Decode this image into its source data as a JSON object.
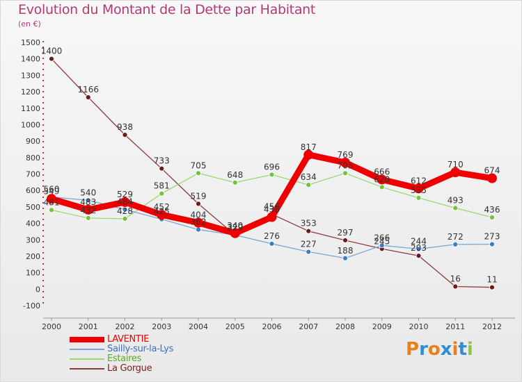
{
  "title": "Evolution du Montant de la Dette par Habitant",
  "unit_label": "(en €)",
  "logo_text": "Proxiti",
  "colors": {
    "title": "#b03a73",
    "logo_letters": [
      "#e8801f",
      "#2f8fd0",
      "#e8801f",
      "#2f8fd0",
      "#e8801f",
      "#2f8fd0",
      "#8cc63f"
    ]
  },
  "chart_data": {
    "type": "line",
    "title": "Evolution du Montant de la Dette par Habitant",
    "ylabel": "(en €)",
    "x": [
      "2000",
      "2001",
      "2002",
      "2003",
      "2004",
      "2005",
      "2006",
      "2007",
      "2008",
      "2009",
      "2010",
      "2011",
      "2012"
    ],
    "ylim": [
      -100,
      1500
    ],
    "yticks": [
      -100,
      0,
      100,
      200,
      300,
      400,
      500,
      600,
      700,
      800,
      900,
      1000,
      1100,
      1200,
      1300,
      1400,
      1500
    ],
    "grid": false,
    "legend_position": "bottom-left",
    "series": [
      {
        "name": "LAVENTIE",
        "color": "#ee0000",
        "marker": "#ee0000",
        "values": [
          549,
          483,
          529,
          452,
          404,
          340,
          438,
          817,
          769,
          666,
          612,
          710,
          674
        ]
      },
      {
        "name": "Sailly-sur-la-Lys",
        "color": "#7aa6d6",
        "marker": "#3a7fc4",
        "values": [
          560,
          540,
          484,
          425,
          362,
          329,
          276,
          227,
          188,
          266,
          244,
          272,
          273
        ]
      },
      {
        "name": "Estaires",
        "color": "#9ad873",
        "marker": "#73c23e",
        "values": [
          481,
          432,
          428,
          581,
          705,
          648,
          696,
          634,
          705,
          620,
          555,
          493,
          436
        ]
      },
      {
        "name": "La Gorgue",
        "color": "#8a3b3b",
        "marker": "#6b1b1b",
        "values": [
          1400,
          1166,
          938,
          733,
          519,
          329,
          456,
          353,
          297,
          245,
          203,
          16,
          11
        ]
      }
    ],
    "data_labels": [
      {
        "year": "2000",
        "text": "549",
        "value": 549
      },
      {
        "year": "2000",
        "text": "560",
        "value": 560
      },
      {
        "year": "2000",
        "text": "481",
        "value": 481
      },
      {
        "year": "2000",
        "text": "1400",
        "value": 1400
      },
      {
        "year": "2001",
        "text": "1166",
        "value": 1166
      },
      {
        "year": "2001",
        "text": "540",
        "value": 540
      },
      {
        "year": "2001",
        "text": "483",
        "value": 483
      },
      {
        "year": "2001",
        "text": "432",
        "value": 432
      },
      {
        "year": "2002",
        "text": "938",
        "value": 938
      },
      {
        "year": "2002",
        "text": "529",
        "value": 529
      },
      {
        "year": "2002",
        "text": "484",
        "value": 484
      },
      {
        "year": "2002",
        "text": "428",
        "value": 428
      },
      {
        "year": "2003",
        "text": "733",
        "value": 733
      },
      {
        "year": "2003",
        "text": "581",
        "value": 581
      },
      {
        "year": "2003",
        "text": "452",
        "value": 452
      },
      {
        "year": "2003",
        "text": "425",
        "value": 425
      },
      {
        "year": "2004",
        "text": "705",
        "value": 705
      },
      {
        "year": "2004",
        "text": "519",
        "value": 519
      },
      {
        "year": "2004",
        "text": "404",
        "value": 404
      },
      {
        "year": "2004",
        "text": "362",
        "value": 362
      },
      {
        "year": "2005",
        "text": "648",
        "value": 648
      },
      {
        "year": "2005",
        "text": "340",
        "value": 340
      },
      {
        "year": "2005",
        "text": "329",
        "value": 329
      },
      {
        "year": "2005",
        "text": "329",
        "value": 329
      },
      {
        "year": "2006",
        "text": "696",
        "value": 696
      },
      {
        "year": "2006",
        "text": "456",
        "value": 456
      },
      {
        "year": "2006",
        "text": "438",
        "value": 438
      },
      {
        "year": "2006",
        "text": "276",
        "value": 276
      },
      {
        "year": "2007",
        "text": "817",
        "value": 817
      },
      {
        "year": "2007",
        "text": "634",
        "value": 634
      },
      {
        "year": "2007",
        "text": "353",
        "value": 353
      },
      {
        "year": "2007",
        "text": "227",
        "value": 227
      },
      {
        "year": "2008",
        "text": "769",
        "value": 769
      },
      {
        "year": "2008",
        "text": "705",
        "value": 705
      },
      {
        "year": "2008",
        "text": "297",
        "value": 297
      },
      {
        "year": "2008",
        "text": "188",
        "value": 188
      },
      {
        "year": "2009",
        "text": "666",
        "value": 666
      },
      {
        "year": "2009",
        "text": "620",
        "value": 620
      },
      {
        "year": "2009",
        "text": "266",
        "value": 266
      },
      {
        "year": "2009",
        "text": "245",
        "value": 245
      },
      {
        "year": "2010",
        "text": "612",
        "value": 612
      },
      {
        "year": "2010",
        "text": "555",
        "value": 555
      },
      {
        "year": "2010",
        "text": "244",
        "value": 244
      },
      {
        "year": "2010",
        "text": "203",
        "value": 203
      },
      {
        "year": "2011",
        "text": "710",
        "value": 710
      },
      {
        "year": "2011",
        "text": "493",
        "value": 493
      },
      {
        "year": "2011",
        "text": "272",
        "value": 272
      },
      {
        "year": "2011",
        "text": "16",
        "value": 16
      },
      {
        "year": "2012",
        "text": "674",
        "value": 674
      },
      {
        "year": "2012",
        "text": "436",
        "value": 436
      },
      {
        "year": "2012",
        "text": "273",
        "value": 273
      },
      {
        "year": "2012",
        "text": "11",
        "value": 11
      }
    ]
  },
  "legend": [
    {
      "label": "LAVENTIE",
      "color": "#ee0000",
      "text_color": "#ee0000"
    },
    {
      "label": "Sailly-sur-la-Lys",
      "color": "#7aa6d6",
      "text_color": "#3a6fc4"
    },
    {
      "label": "Estaires",
      "color": "#9ad873",
      "text_color": "#5aa826"
    },
    {
      "label": "La Gorgue",
      "color": "#8a3b3b",
      "text_color": "#7a2020"
    }
  ]
}
